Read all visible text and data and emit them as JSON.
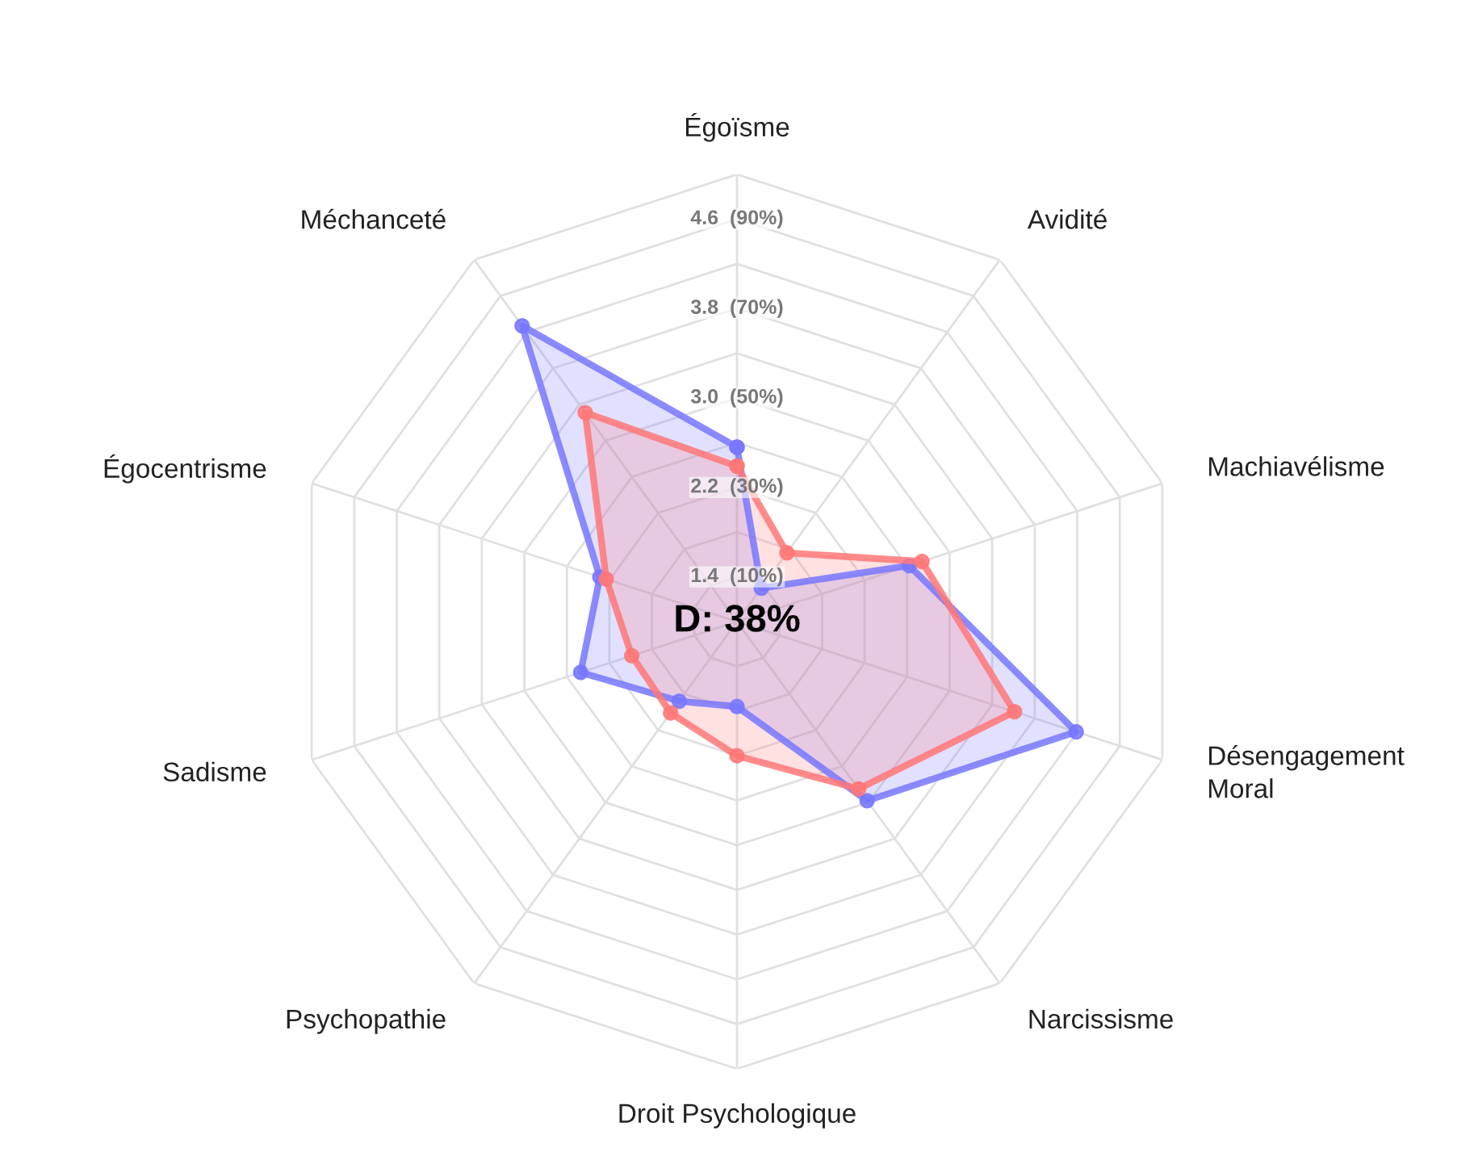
{
  "chart_data": {
    "type": "radar",
    "categories": [
      "Égoïsme",
      "Avidité",
      "Machiavélisme",
      "Désengagement\nMoral",
      "Narcissisme",
      "Droit Psychologique",
      "Psychopathie",
      "Sadisme",
      "Égocentrisme",
      "Méchanceté"
    ],
    "series": [
      {
        "color": "#7777ff",
        "values": [
          2.56,
          1.37,
          2.62,
          4.19,
          2.98,
          1.76,
          1.88,
          2.47,
          2.29,
          4.27
        ]
      },
      {
        "color": "#ff7777",
        "values": [
          2.39,
          1.76,
          2.74,
          3.61,
          2.85,
          2.2,
          2.01,
          1.99,
          2.23,
          3.31
        ]
      }
    ],
    "ylim": [
      1.0,
      5.0
    ],
    "yticks": [
      {
        "value": 1.4,
        "label": "1.4  (10%)"
      },
      {
        "value": 2.2,
        "label": "2.2  (30%)"
      },
      {
        "value": 3.0,
        "label": "3.0  (50%)"
      },
      {
        "value": 3.8,
        "label": "3.8  (70%)"
      },
      {
        "value": 4.6,
        "label": "4.6  (90%)"
      }
    ],
    "annotations": [
      "D: 38%"
    ],
    "marker": "circle",
    "grid": true
  }
}
